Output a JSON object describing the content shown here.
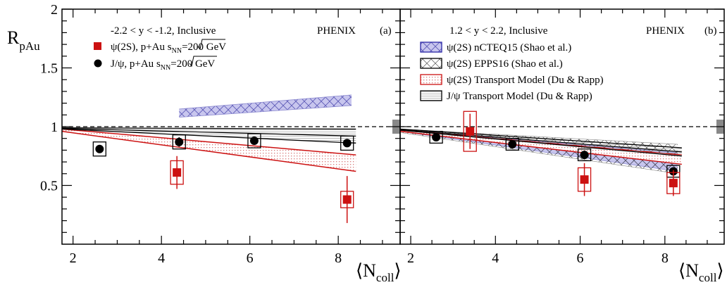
{
  "chart_data": [
    {
      "type": "scatter",
      "panel": "a",
      "ylabel_main": "R",
      "ylabel_sub": "pAu",
      "xlabel_main": "⟨N",
      "xlabel_sub": "coll",
      "xlabel_close": "⟩",
      "xlim": [
        1.75,
        9.4
      ],
      "ylim": [
        0,
        2
      ],
      "x_ticks": [
        "2",
        "4",
        "6",
        "8"
      ],
      "y_ticks": [
        "0.5",
        "1",
        "1.5",
        "2"
      ],
      "selection": "-2.2 < y < -1.2, Inclusive",
      "experiment": "PHENIX",
      "panel_label": "(a)",
      "legend": {
        "psi2s": {
          "prefix": "ψ(2S), p+Au ",
          "s": "s",
          "nn": "NN",
          "suffix": "=200 GeV"
        },
        "jpsi": {
          "prefix": "J/ψ, p+Au ",
          "s": "s",
          "nn": "NN",
          "suffix": "=200 GeV"
        }
      },
      "reference_line": 1.0,
      "global_uncertainty": [
        0.94,
        1.06
      ],
      "series": [
        {
          "name": "J/ψ, p+Au √sNN=200 GeV",
          "x": [
            2.6,
            4.4,
            6.1,
            8.2
          ],
          "y": [
            0.81,
            0.87,
            0.88,
            0.86
          ],
          "stat": [
            0.03,
            0.04,
            0.03,
            0.03
          ],
          "syst": [
            0.06,
            0.06,
            0.06,
            0.06
          ]
        },
        {
          "name": "ψ(2S), p+Au √sNN=200 GeV",
          "x": [
            4.35,
            8.2
          ],
          "y": [
            0.61,
            0.38
          ],
          "stat": [
            0.14,
            0.2
          ],
          "syst": [
            0.1,
            0.07
          ]
        }
      ],
      "bands": [
        {
          "name": "ψ(2S) nCTEQ15 (Shao et al.)",
          "x": [
            4.4,
            8.3
          ],
          "low": [
            1.08,
            1.18
          ],
          "high": [
            1.15,
            1.27
          ]
        },
        {
          "name": "ψ(2S) Transport Model (Du & Rapp)",
          "x": [
            1.75,
            8.4
          ],
          "low": [
            0.96,
            0.62
          ],
          "high": [
            0.98,
            0.76
          ]
        },
        {
          "name": "J/ψ Transport Model (Du & Rapp)",
          "x": [
            1.75,
            8.4
          ],
          "low": [
            0.98,
            0.86
          ],
          "high": [
            0.99,
            0.98
          ]
        }
      ]
    },
    {
      "type": "scatter",
      "panel": "b",
      "xlabel_main": "⟨N",
      "xlabel_sub": "coll",
      "xlabel_close": "⟩",
      "xlim": [
        1.75,
        9.4
      ],
      "ylim": [
        0,
        2
      ],
      "x_ticks": [
        "2",
        "4",
        "6",
        "8"
      ],
      "selection": "1.2 < y < 2.2, Inclusive",
      "experiment": "PHENIX",
      "panel_label": "(b)",
      "legend_entries": [
        "ψ(2S) nCTEQ15 (Shao et al.)",
        "ψ(2S) EPPS16 (Shao et al.)",
        "ψ(2S) Transport Model (Du & Rapp)",
        "J/ψ Transport Model (Du & Rapp)"
      ],
      "reference_line": 1.0,
      "global_uncertainty": [
        0.94,
        1.06
      ],
      "series": [
        {
          "name": "J/ψ",
          "x": [
            2.6,
            4.4,
            6.1,
            8.2
          ],
          "y": [
            0.91,
            0.85,
            0.76,
            0.62
          ],
          "stat": [
            0.03,
            0.03,
            0.03,
            0.03
          ],
          "syst": [
            0.05,
            0.05,
            0.05,
            0.05
          ]
        },
        {
          "name": "ψ(2S)",
          "x": [
            3.4,
            6.1,
            8.2
          ],
          "y": [
            0.96,
            0.55,
            0.52
          ],
          "stat": [
            0.15,
            0.14,
            0.11
          ],
          "syst": [
            0.17,
            0.1,
            0.09
          ]
        }
      ],
      "bands": [
        {
          "name": "ψ(2S) nCTEQ15 (Shao et al.)",
          "x": [
            1.75,
            8.3
          ],
          "low": [
            0.96,
            0.62
          ],
          "high": [
            0.97,
            0.78
          ]
        },
        {
          "name": "ψ(2S) EPPS16 (Shao et al.)",
          "x": [
            1.75,
            8.3
          ],
          "low": [
            0.95,
            0.6
          ],
          "high": [
            0.98,
            0.85
          ]
        },
        {
          "name": "ψ(2S) Transport Model (Du & Rapp)",
          "x": [
            1.75,
            8.4
          ],
          "low": [
            0.96,
            0.68
          ],
          "high": [
            0.97,
            0.76
          ]
        },
        {
          "name": "J/ψ Transport Model (Du & Rapp)",
          "x": [
            1.75,
            8.4
          ],
          "low": [
            0.97,
            0.75
          ],
          "high": [
            0.98,
            0.82
          ]
        }
      ]
    }
  ]
}
